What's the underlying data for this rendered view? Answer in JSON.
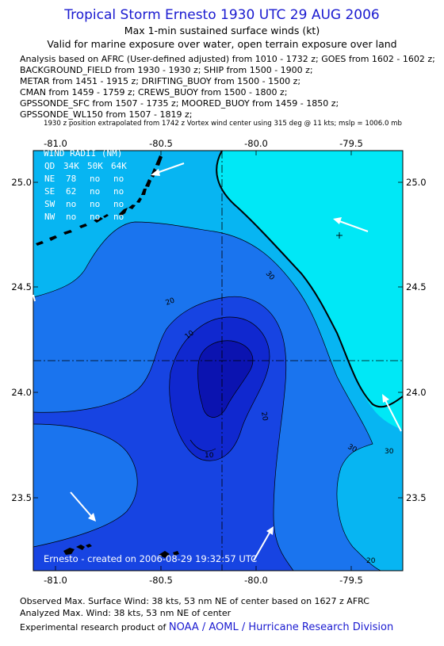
{
  "header": {
    "title": "Tropical Storm Ernesto 1930 UTC 29 AUG 2006",
    "subtitle1": "Max 1-min sustained surface winds (kt)",
    "subtitle2": "Valid for marine exposure over water, open terrain exposure over land"
  },
  "analysis_lines": [
    "Analysis based on  AFRC (User-defined adjusted) from 1010 - 1732 z;  GOES from 1602 - 1602 z;",
    "BACKGROUND_FIELD from 1930 - 1930 z;  SHIP from 1500 - 1900 z;",
    "METAR from 1451 - 1915 z;  DRIFTING_BUOY from 1500 - 1500 z;",
    "CMAN from 1459 - 1759 z;  CREWS_BUOY from 1500 - 1800 z;",
    "GPSSONDE_SFC from 1507 - 1735 z;  MOORED_BUOY from 1459 - 1850 z;",
    "GPSSONDE_WL150 from 1507 - 1819 z;"
  ],
  "position_note": "1930 z position extrapolated from 1742 z Vortex wind center using 315 deg @ 11 kts; mslp = 1006.0 mb",
  "map": {
    "lon_labels": [
      "-81.0",
      "-80.5",
      "-80.0",
      "-79.5"
    ],
    "lat_labels": [
      "25.0",
      "24.5",
      "24.0",
      "23.5"
    ],
    "lon_range": [
      -81.1,
      -79.35
    ],
    "lat_range": [
      23.15,
      25.15
    ],
    "center": {
      "lon": -80.15,
      "lat": 24.15
    },
    "contour_labels": [
      "10",
      "10",
      "20",
      "20",
      "20",
      "30",
      "30",
      "30"
    ],
    "wind_radii": {
      "title": "WIND RADII (NM)",
      "header": [
        "QD",
        "34K",
        "50K",
        "64K"
      ],
      "rows": [
        [
          "NE",
          "78",
          "no",
          "no"
        ],
        [
          "SE",
          "62",
          "no",
          "no"
        ],
        [
          "SW",
          "no",
          "no",
          "no"
        ],
        [
          "NW",
          "no",
          "no",
          "no"
        ]
      ]
    },
    "created_text": "Ernesto - created on 2006-08-29 19:32:57 UTC",
    "colors": {
      "ge_30": "#00e8f6",
      "20_30": "#07b5f2",
      "10_20": "#1a74ee",
      "0_10": "#1744e2",
      "lt_0": "#1028cf",
      "core": "#0b13b0",
      "land": "#000000",
      "arrow": "#ffffff"
    }
  },
  "footer": {
    "observed": "Observed Max. Surface Wind: 38 kts, 53 nm NE of center based on 1627 z AFRC",
    "analyzed": "Analyzed Max. Wind: 38 kts, 53 nm NE of center",
    "credit_prefix": "Experimental research product of",
    "credit_link": "NOAA / AOML / Hurricane Research Division"
  }
}
